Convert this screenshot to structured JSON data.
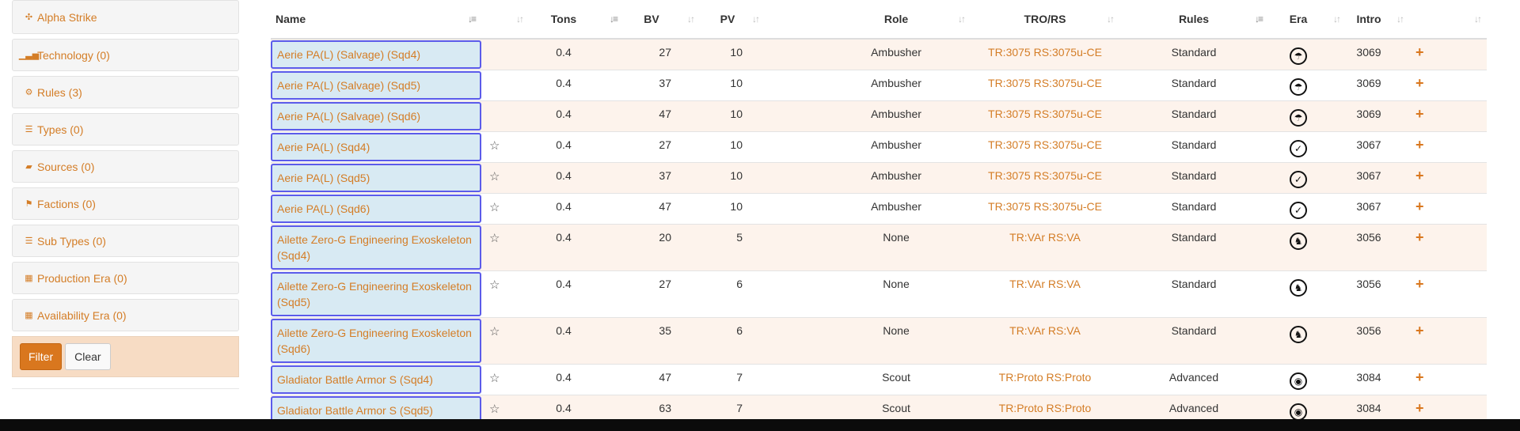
{
  "sidebar": {
    "items": [
      {
        "icon": "crosshair-icon",
        "glyph": "✣",
        "label": "Alpha Strike"
      },
      {
        "icon": "bar-chart-icon",
        "glyph": "▁▃▅",
        "label": "Technology (0)"
      },
      {
        "icon": "gear-icon",
        "glyph": "⚙",
        "label": "Rules (3)"
      },
      {
        "icon": "list-icon",
        "glyph": "☰",
        "label": "Types (0)"
      },
      {
        "icon": "book-icon",
        "glyph": "▰",
        "label": "Sources (0)"
      },
      {
        "icon": "flag-icon",
        "glyph": "⚑",
        "label": "Factions (0)"
      },
      {
        "icon": "list-icon",
        "glyph": "☰",
        "label": "Sub Types (0)"
      },
      {
        "icon": "calendar-icon",
        "glyph": "▦",
        "label": "Production Era (0)"
      },
      {
        "icon": "calendar-icon",
        "glyph": "▦",
        "label": "Availability Era (0)"
      }
    ],
    "filter_label": "Filter",
    "clear_label": "Clear"
  },
  "table": {
    "headers": {
      "name": "Name",
      "tons": "Tons",
      "bv": "BV",
      "pv": "PV",
      "role": "Role",
      "tro": "TRO/RS",
      "rules": "Rules",
      "era": "Era",
      "intro": "Intro"
    },
    "rows": [
      {
        "name": "Aerie PA(L) (Salvage) (Sqd4)",
        "star": "",
        "tons": "0.4",
        "bv": "27",
        "pv": "10",
        "role": "Ambusher",
        "tro": "TR:3075 RS:3075u-CE",
        "rules": "Standard",
        "era": "jihad-era-icon",
        "era_glyph": "☂",
        "intro": "3069"
      },
      {
        "name": "Aerie PA(L) (Salvage) (Sqd5)",
        "star": "",
        "tons": "0.4",
        "bv": "37",
        "pv": "10",
        "role": "Ambusher",
        "tro": "TR:3075 RS:3075u-CE",
        "rules": "Standard",
        "era": "jihad-era-icon",
        "era_glyph": "☂",
        "intro": "3069"
      },
      {
        "name": "Aerie PA(L) (Salvage) (Sqd6)",
        "star": "",
        "tons": "0.4",
        "bv": "47",
        "pv": "10",
        "role": "Ambusher",
        "tro": "TR:3075 RS:3075u-CE",
        "rules": "Standard",
        "era": "jihad-era-icon",
        "era_glyph": "☂",
        "intro": "3069"
      },
      {
        "name": "Aerie PA(L) (Sqd4)",
        "star": "☆",
        "tons": "0.4",
        "bv": "27",
        "pv": "10",
        "role": "Ambusher",
        "tro": "TR:3075 RS:3075u-CE",
        "rules": "Standard",
        "era": "civil-war-era-icon",
        "era_glyph": "✓",
        "intro": "3067"
      },
      {
        "name": "Aerie PA(L) (Sqd5)",
        "star": "☆",
        "tons": "0.4",
        "bv": "37",
        "pv": "10",
        "role": "Ambusher",
        "tro": "TR:3075 RS:3075u-CE",
        "rules": "Standard",
        "era": "civil-war-era-icon",
        "era_glyph": "✓",
        "intro": "3067"
      },
      {
        "name": "Aerie PA(L) (Sqd6)",
        "star": "☆",
        "tons": "0.4",
        "bv": "47",
        "pv": "10",
        "role": "Ambusher",
        "tro": "TR:3075 RS:3075u-CE",
        "rules": "Standard",
        "era": "civil-war-era-icon",
        "era_glyph": "✓",
        "intro": "3067"
      },
      {
        "name": "Ailette Zero-G Engineering Exoskeleton (Sqd4)",
        "star": "☆",
        "tons": "0.4",
        "bv": "20",
        "pv": "5",
        "role": "None",
        "tro": "TR:VAr RS:VA",
        "rules": "Standard",
        "era": "clan-invasion-era-icon",
        "era_glyph": "♞",
        "intro": "3056"
      },
      {
        "name": "Ailette Zero-G Engineering Exoskeleton (Sqd5)",
        "star": "☆",
        "tons": "0.4",
        "bv": "27",
        "pv": "6",
        "role": "None",
        "tro": "TR:VAr RS:VA",
        "rules": "Standard",
        "era": "clan-invasion-era-icon",
        "era_glyph": "♞",
        "intro": "3056"
      },
      {
        "name": "Ailette Zero-G Engineering Exoskeleton (Sqd6)",
        "star": "☆",
        "tons": "0.4",
        "bv": "35",
        "pv": "6",
        "role": "None",
        "tro": "TR:VAr RS:VA",
        "rules": "Standard",
        "era": "clan-invasion-era-icon",
        "era_glyph": "♞",
        "intro": "3056"
      },
      {
        "name": "Gladiator Battle Armor S (Sqd4)",
        "star": "☆",
        "tons": "0.4",
        "bv": "47",
        "pv": "7",
        "role": "Scout",
        "tro": "TR:Proto RS:Proto",
        "rules": "Advanced",
        "era": "dark-age-era-icon",
        "era_glyph": "◉",
        "intro": "3084"
      },
      {
        "name": "Gladiator Battle Armor S (Sqd5)",
        "star": "☆",
        "tons": "0.4",
        "bv": "63",
        "pv": "7",
        "role": "Scout",
        "tro": "TR:Proto RS:Proto",
        "rules": "Advanced",
        "era": "dark-age-era-icon",
        "era_glyph": "◉",
        "intro": "3084"
      }
    ],
    "add_glyph": "+"
  }
}
